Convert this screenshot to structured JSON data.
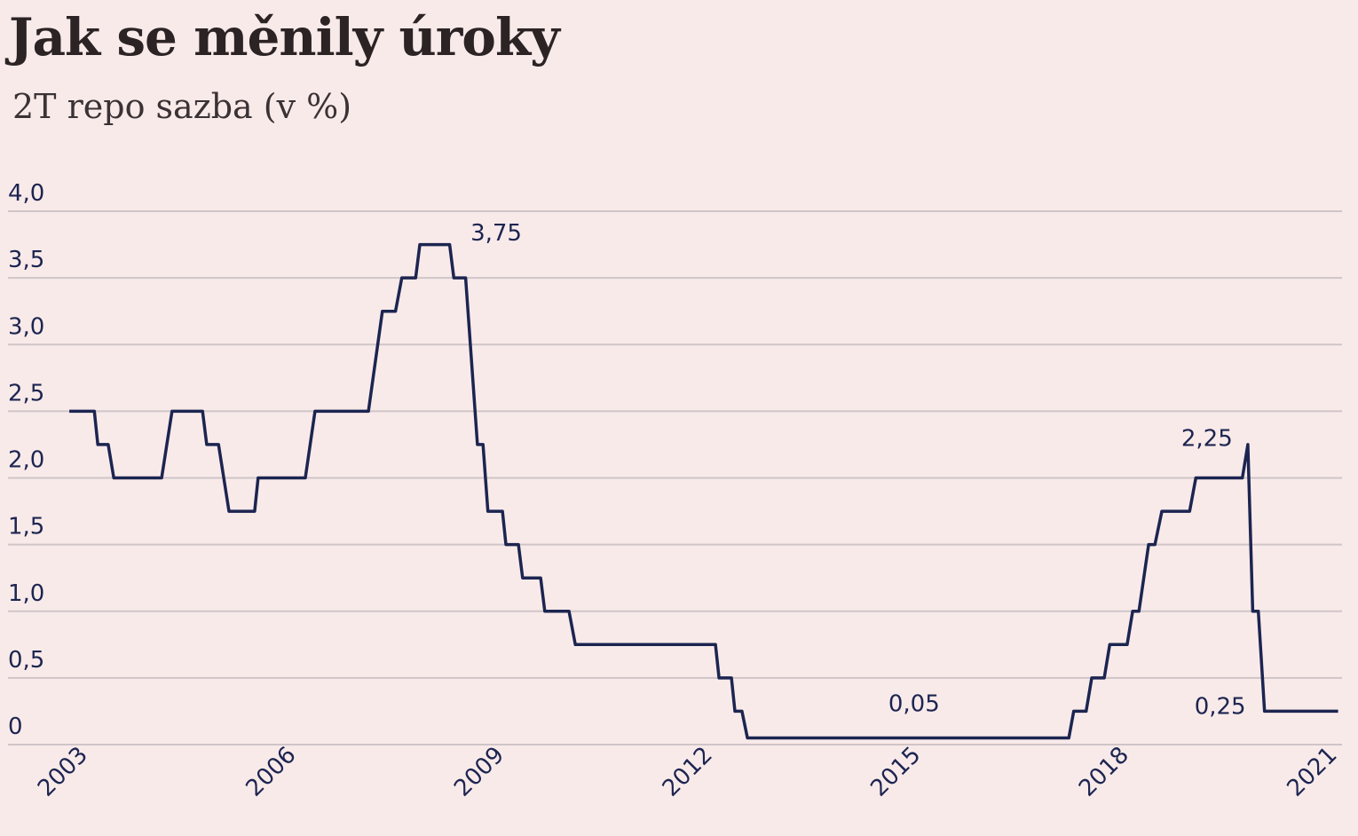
{
  "chart_data": {
    "type": "line",
    "title": "Jak se měnily úroky",
    "subtitle": "2T repo sazba (v %)",
    "xlabel": "",
    "ylabel": "",
    "xlim": [
      2002.72,
      2021.0
    ],
    "ylim": [
      0,
      4.0
    ],
    "grid": true,
    "legend": "none",
    "y_ticks": [
      {
        "value": 0,
        "label": "0"
      },
      {
        "value": 0.5,
        "label": "0,5"
      },
      {
        "value": 1.0,
        "label": "1,0"
      },
      {
        "value": 1.5,
        "label": "1,5"
      },
      {
        "value": 2.0,
        "label": "2,0"
      },
      {
        "value": 2.5,
        "label": "2,5"
      },
      {
        "value": 3.0,
        "label": "3,0"
      },
      {
        "value": 3.5,
        "label": "3,5"
      },
      {
        "value": 4.0,
        "label": "4,0"
      }
    ],
    "x_ticks": [
      {
        "value": 2003,
        "label": "2003"
      },
      {
        "value": 2006,
        "label": "2006"
      },
      {
        "value": 2009,
        "label": "2009"
      },
      {
        "value": 2012,
        "label": "2012"
      },
      {
        "value": 2015,
        "label": "2015"
      },
      {
        "value": 2018,
        "label": "2018"
      },
      {
        "value": 2021,
        "label": "2021"
      }
    ],
    "series": [
      {
        "name": "2T repo sazba",
        "color": "#1c2550",
        "points": [
          [
            2002.72,
            2.5
          ],
          [
            2003.08,
            2.5
          ],
          [
            2003.13,
            2.25
          ],
          [
            2003.28,
            2.25
          ],
          [
            2003.36,
            2.0
          ],
          [
            2004.05,
            2.0
          ],
          [
            2004.2,
            2.5
          ],
          [
            2004.64,
            2.5
          ],
          [
            2004.7,
            2.25
          ],
          [
            2004.87,
            2.25
          ],
          [
            2005.02,
            1.75
          ],
          [
            2005.39,
            1.75
          ],
          [
            2005.44,
            2.0
          ],
          [
            2006.12,
            2.0
          ],
          [
            2006.26,
            2.5
          ],
          [
            2007.03,
            2.5
          ],
          [
            2007.23,
            3.25
          ],
          [
            2007.42,
            3.25
          ],
          [
            2007.51,
            3.5
          ],
          [
            2007.71,
            3.5
          ],
          [
            2007.77,
            3.75
          ],
          [
            2008.2,
            3.75
          ],
          [
            2008.26,
            3.5
          ],
          [
            2008.43,
            3.5
          ],
          [
            2008.6,
            2.25
          ],
          [
            2008.68,
            2.25
          ],
          [
            2008.75,
            1.75
          ],
          [
            2008.96,
            1.75
          ],
          [
            2009.01,
            1.5
          ],
          [
            2009.19,
            1.5
          ],
          [
            2009.25,
            1.25
          ],
          [
            2009.51,
            1.25
          ],
          [
            2009.57,
            1.0
          ],
          [
            2009.92,
            1.0
          ],
          [
            2010.01,
            0.75
          ],
          [
            2012.03,
            0.75
          ],
          [
            2012.08,
            0.5
          ],
          [
            2012.26,
            0.5
          ],
          [
            2012.31,
            0.25
          ],
          [
            2012.41,
            0.25
          ],
          [
            2012.49,
            0.05
          ],
          [
            2017.12,
            0.05
          ],
          [
            2017.19,
            0.25
          ],
          [
            2017.37,
            0.25
          ],
          [
            2017.45,
            0.5
          ],
          [
            2017.63,
            0.5
          ],
          [
            2017.71,
            0.75
          ],
          [
            2017.96,
            0.75
          ],
          [
            2018.04,
            1.0
          ],
          [
            2018.13,
            1.0
          ],
          [
            2018.27,
            1.5
          ],
          [
            2018.36,
            1.5
          ],
          [
            2018.46,
            1.75
          ],
          [
            2018.86,
            1.75
          ],
          [
            2018.95,
            2.0
          ],
          [
            2019.62,
            2.0
          ],
          [
            2019.7,
            2.25
          ],
          [
            2019.77,
            1.0
          ],
          [
            2019.85,
            1.0
          ],
          [
            2019.94,
            0.25
          ],
          [
            2020.02,
            0.25
          ],
          [
            2021.0,
            0.25
          ]
        ]
      }
    ],
    "annotations": [
      {
        "text": "3,75",
        "x": 2008.87,
        "y": 3.78
      },
      {
        "text": "2,25",
        "x": 2019.11,
        "y": 2.24
      },
      {
        "text": "0,05",
        "x": 2014.89,
        "y": 0.25
      },
      {
        "text": "0,25",
        "x": 2019.3,
        "y": 0.23
      }
    ],
    "colors": {
      "background": "#f9eaea",
      "grid": "#cfc5c7",
      "line": "#1c2550",
      "title": "#2b2324"
    }
  }
}
